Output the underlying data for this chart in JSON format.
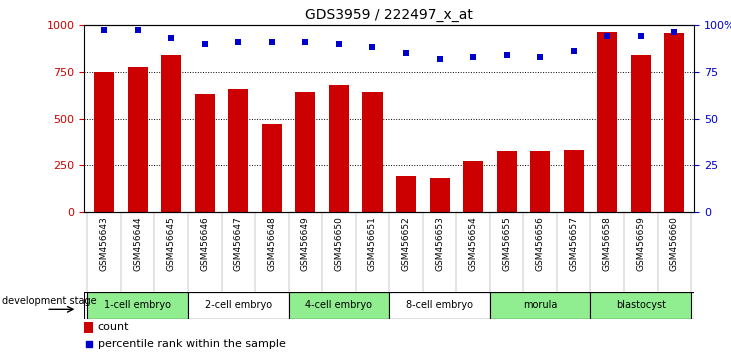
{
  "title": "GDS3959 / 222497_x_at",
  "categories": [
    "GSM456643",
    "GSM456644",
    "GSM456645",
    "GSM456646",
    "GSM456647",
    "GSM456648",
    "GSM456649",
    "GSM456650",
    "GSM456651",
    "GSM456652",
    "GSM456653",
    "GSM456654",
    "GSM456655",
    "GSM456656",
    "GSM456657",
    "GSM456658",
    "GSM456659",
    "GSM456660"
  ],
  "counts": [
    750,
    775,
    840,
    630,
    660,
    470,
    640,
    680,
    640,
    195,
    185,
    275,
    325,
    325,
    330,
    960,
    840,
    955
  ],
  "percentiles": [
    97,
    97,
    93,
    90,
    91,
    91,
    91,
    90,
    88,
    85,
    82,
    83,
    84,
    83,
    86,
    94,
    94,
    96
  ],
  "bar_color": "#cc0000",
  "dot_color": "#0000cc",
  "ylim_left": [
    0,
    1000
  ],
  "ylim_right": [
    0,
    100
  ],
  "yticks_left": [
    0,
    250,
    500,
    750,
    1000
  ],
  "yticks_right": [
    0,
    25,
    50,
    75,
    100
  ],
  "stages": [
    {
      "label": "1-cell embryo",
      "start": 0,
      "end": 3
    },
    {
      "label": "2-cell embryo",
      "start": 3,
      "end": 6
    },
    {
      "label": "4-cell embryo",
      "start": 6,
      "end": 9
    },
    {
      "label": "8-cell embryo",
      "start": 9,
      "end": 12
    },
    {
      "label": "morula",
      "start": 12,
      "end": 15
    },
    {
      "label": "blastocyst",
      "start": 15,
      "end": 18
    }
  ],
  "stage_colors": [
    "#90ee90",
    "#ffffff",
    "#90ee90",
    "#ffffff",
    "#90ee90",
    "#90ee90"
  ],
  "legend_count_label": "count",
  "legend_pct_label": "percentile rank within the sample",
  "dev_stage_label": "development stage",
  "left_axis_color": "#cc0000",
  "right_axis_color": "#0000cc",
  "xticklabel_bg": "#cccccc"
}
